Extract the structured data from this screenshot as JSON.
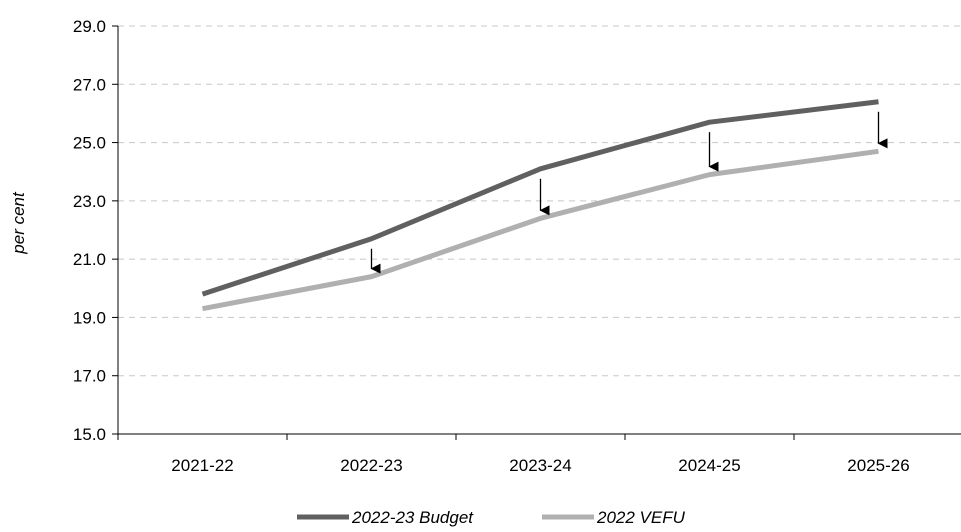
{
  "chart_data": {
    "type": "line",
    "categories": [
      "2021-22",
      "2022-23",
      "2023-24",
      "2024-25",
      "2025-26"
    ],
    "series": [
      {
        "name": "2022-23 Budget",
        "color": "#606060",
        "values": [
          19.8,
          21.7,
          24.1,
          25.7,
          26.4
        ]
      },
      {
        "name": "2022 VEFU",
        "color": "#b0b0b0",
        "values": [
          19.3,
          20.4,
          22.4,
          23.9,
          24.7
        ]
      }
    ],
    "ylabel": "per cent",
    "xlabel": "",
    "ylim": [
      15.0,
      29.0
    ],
    "yticks": [
      "15.0",
      "17.0",
      "19.0",
      "21.0",
      "23.0",
      "25.0",
      "27.0",
      "29.0"
    ],
    "grid": "horizontal dashed",
    "legend": "bottom",
    "annotations": [
      "downward arrows from 2022-23 Budget to 2022 VEFU at 2022-23, 2023-24, 2024-25, 2025-26"
    ],
    "arrow_categories": [
      "2022-23",
      "2023-24",
      "2024-25",
      "2025-26"
    ]
  }
}
